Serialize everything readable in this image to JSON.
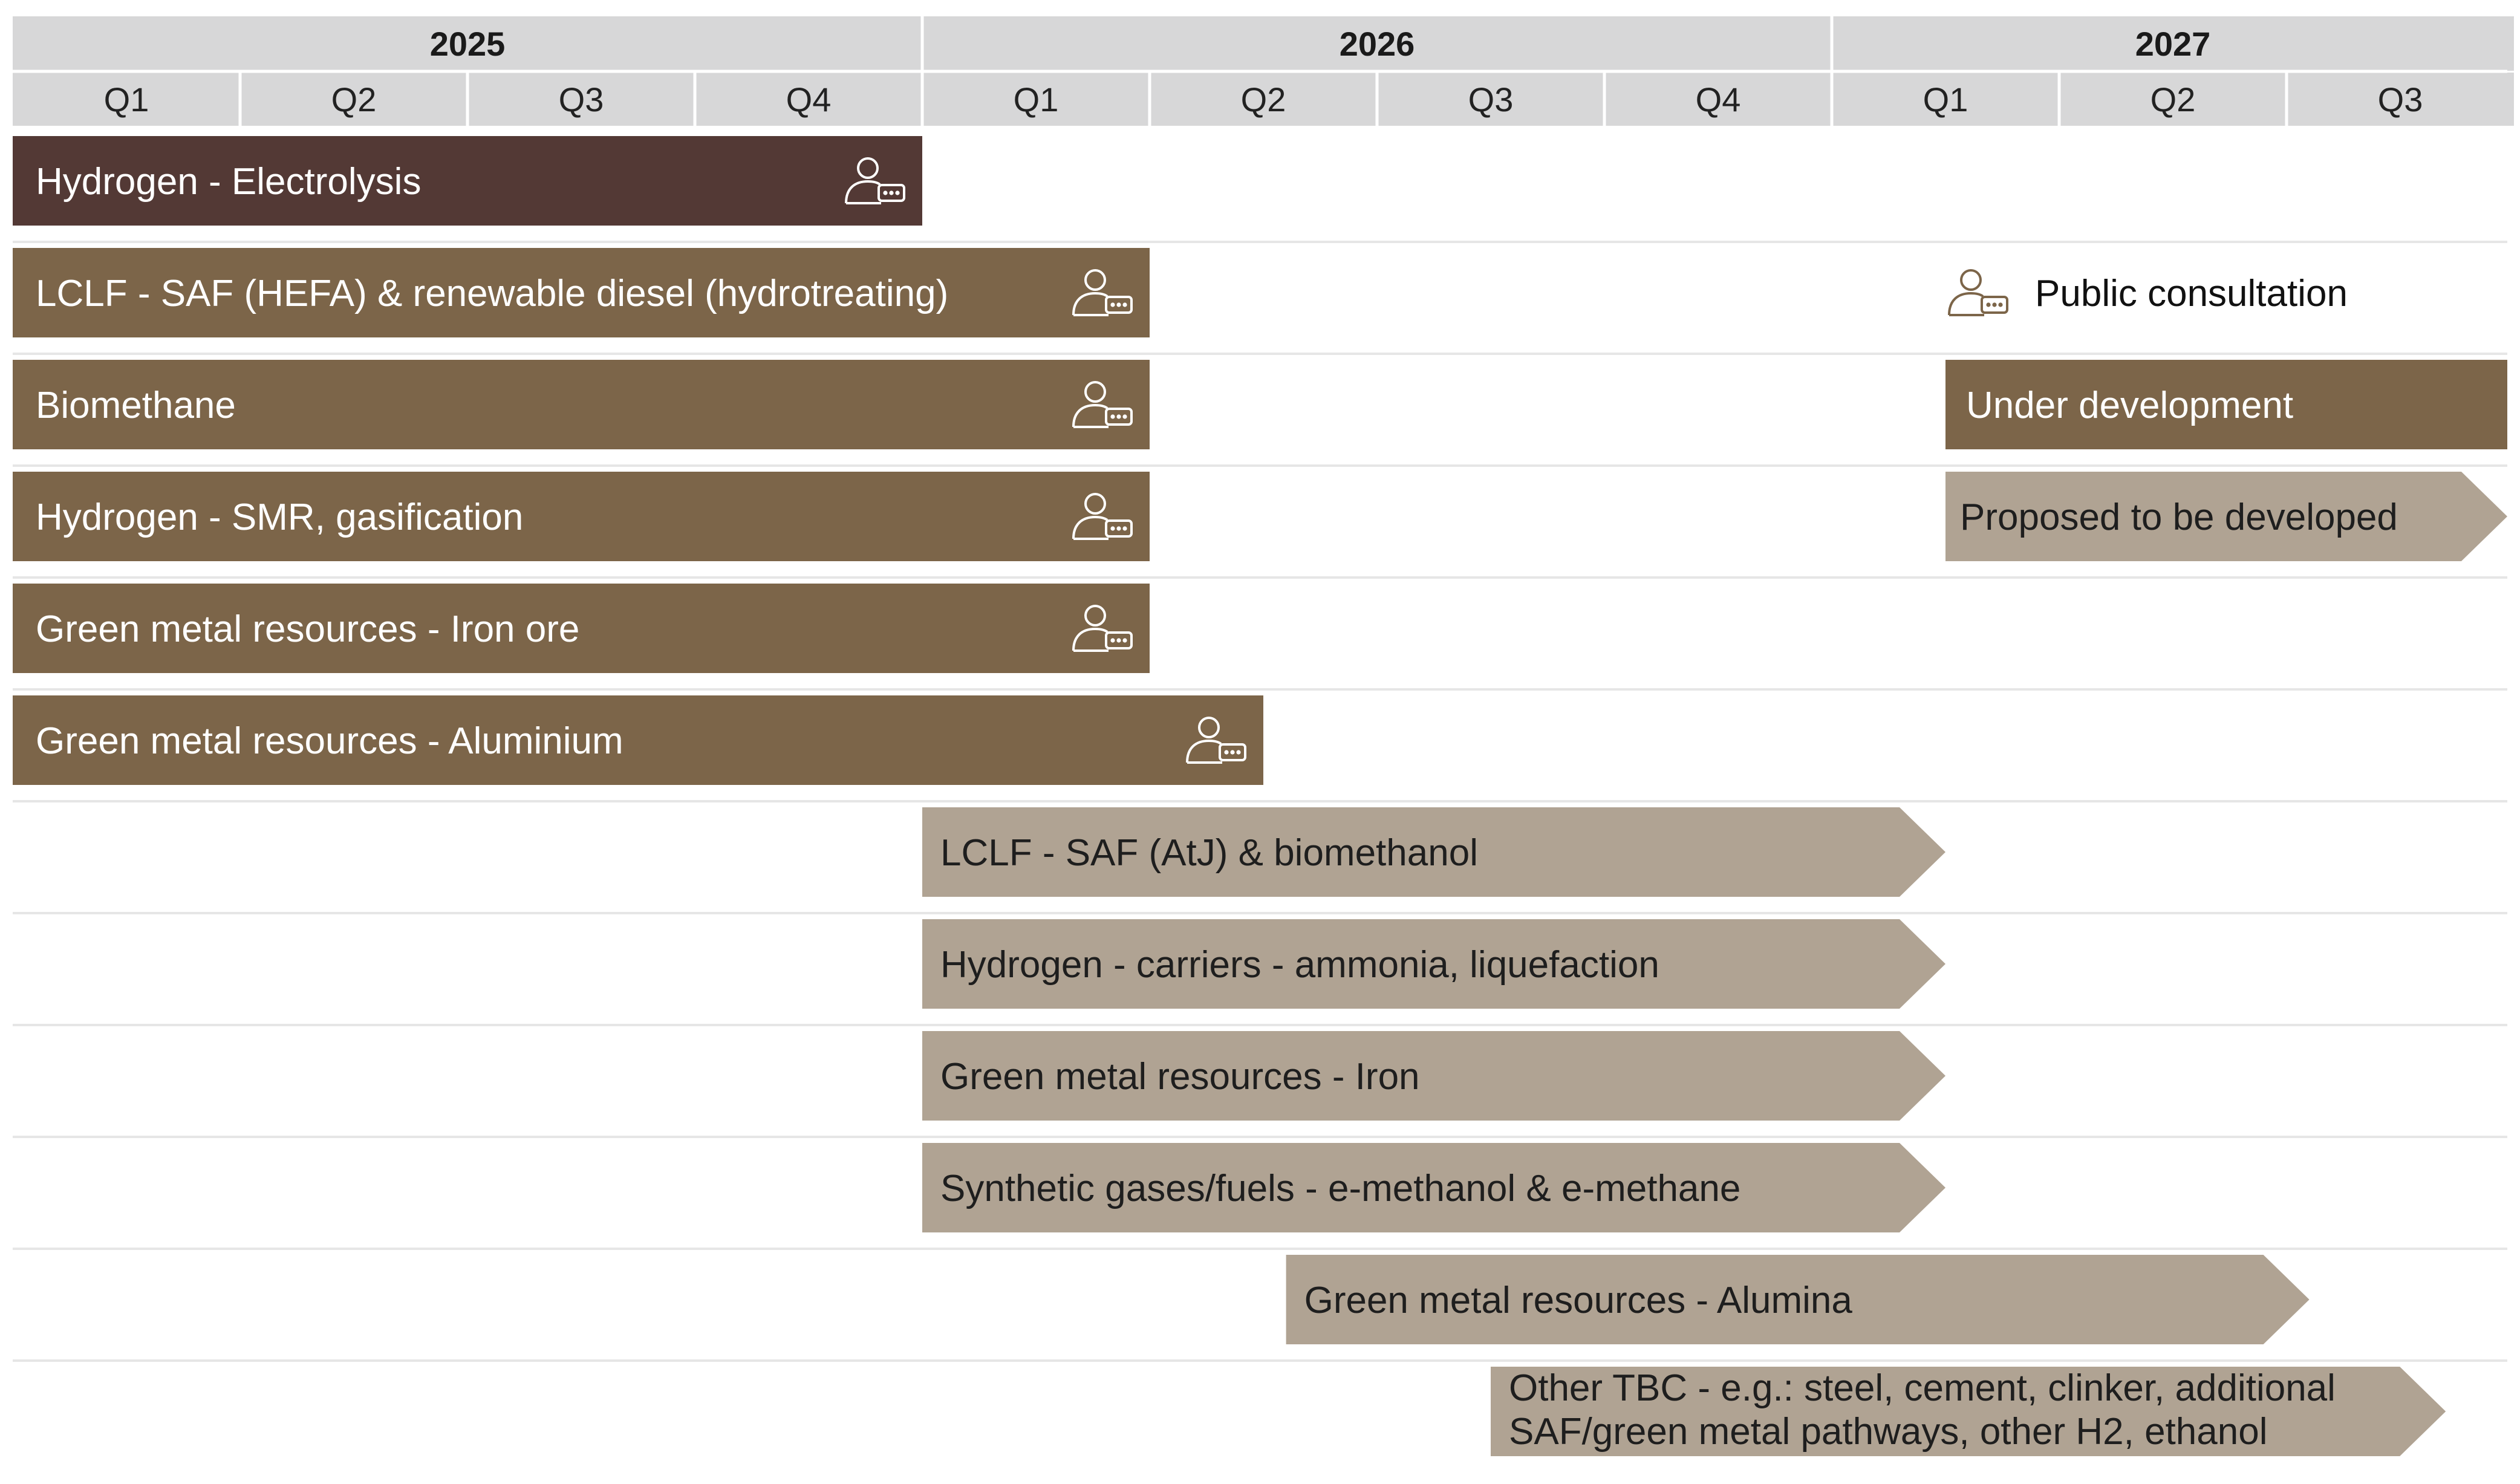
{
  "chart_data": {
    "type": "gantt",
    "years": [
      {
        "label": "2025",
        "start": 0,
        "end": 4
      },
      {
        "label": "2026",
        "start": 4,
        "end": 8
      },
      {
        "label": "2027",
        "start": 8,
        "end": 11
      }
    ],
    "quarters": [
      "Q1",
      "Q2",
      "Q3",
      "Q4",
      "Q1",
      "Q2",
      "Q3",
      "Q4",
      "Q1",
      "Q2",
      "Q3"
    ],
    "tasks": [
      {
        "name": "Hydrogen - Electrolysis",
        "start": 0,
        "end": 4,
        "status": "public_consultation",
        "consultation": true
      },
      {
        "name": "LCLF - SAF (HEFA) & renewable diesel (hydrotreating)",
        "start": 0,
        "end": 5,
        "status": "under_development",
        "consultation": true
      },
      {
        "name": "Biomethane",
        "start": 0,
        "end": 5,
        "status": "under_development",
        "consultation": true
      },
      {
        "name": "Hydrogen - SMR, gasification",
        "start": 0,
        "end": 5,
        "status": "under_development",
        "consultation": true
      },
      {
        "name": "Green metal resources - Iron ore",
        "start": 0,
        "end": 5,
        "status": "under_development",
        "consultation": true
      },
      {
        "name": "Green metal resources - Aluminium",
        "start": 0,
        "end": 5.5,
        "status": "under_development",
        "consultation": true
      },
      {
        "name": "LCLF - SAF (AtJ) & biomethanol",
        "start": 4,
        "end": 8.5,
        "status": "proposed",
        "consultation": false
      },
      {
        "name": "Hydrogen - carriers - ammonia, liquefaction",
        "start": 4,
        "end": 8.5,
        "status": "proposed",
        "consultation": false
      },
      {
        "name": "Green metal resources - Iron",
        "start": 4,
        "end": 8.5,
        "status": "proposed",
        "consultation": false
      },
      {
        "name": "Synthetic gases/fuels - e-methanol & e-methane",
        "start": 4,
        "end": 8.5,
        "status": "proposed",
        "consultation": false
      },
      {
        "name": "Green metal resources - Alumina",
        "start": 5.6,
        "end": 10.1,
        "status": "proposed",
        "consultation": false
      },
      {
        "name": "Other TBC - e.g.: steel, cement, clinker, additional SAF/green metal pathways, other H2, ethanol",
        "lines": [
          "Other TBC - e.g.: steel, cement, clinker, additional",
          "SAF/green metal pathways, other H2, ethanol"
        ],
        "start": 6.5,
        "end": 10.7,
        "status": "proposed",
        "consultation": false
      }
    ],
    "legend": [
      {
        "label": "Public consultation",
        "kind": "icon"
      },
      {
        "label": "Under development",
        "kind": "bar",
        "color": "#7c6549"
      },
      {
        "label": "Proposed to be developed",
        "kind": "arrow",
        "color": "#b0a393"
      }
    ],
    "colors": {
      "public_consultation": "#533935",
      "under_development": "#7c6549",
      "proposed": "#b0a393",
      "header": "#d7d7d8",
      "text_light": "#ffffff",
      "text_dark": "#1e1e1e",
      "separator": "#e6e6e6"
    }
  }
}
